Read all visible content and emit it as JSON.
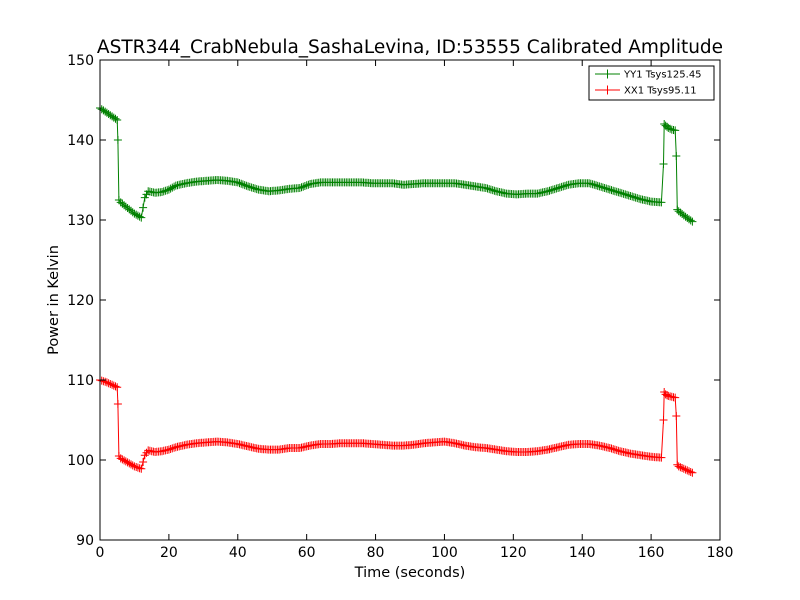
{
  "chart_data": {
    "type": "line",
    "title": "ASTR344_CrabNebula_SashaLevina, ID:53555 Calibrated Amplitude",
    "xlabel": "Time (seconds)",
    "ylabel": "Power in Kelvin",
    "xlim": [
      0,
      180
    ],
    "ylim": [
      90,
      150
    ],
    "xticks": [
      0,
      20,
      40,
      60,
      80,
      100,
      120,
      140,
      160,
      180
    ],
    "yticks": [
      90,
      100,
      110,
      120,
      130,
      140,
      150
    ],
    "grid": false,
    "legend_position": "top-right",
    "marker": "+",
    "series": [
      {
        "name": "YY1 Tsys125.45",
        "color": "#008000",
        "x": [
          0,
          2,
          4,
          5,
          5.2,
          5.5,
          6,
          8,
          10,
          12,
          13,
          14,
          16,
          18,
          20,
          22,
          25,
          28,
          31,
          34,
          37,
          40,
          43,
          46,
          49,
          52,
          55,
          58,
          61,
          64,
          67,
          70,
          73,
          76,
          79,
          82,
          85,
          88,
          91,
          94,
          97,
          100,
          103,
          106,
          109,
          112,
          115,
          118,
          121,
          124,
          127,
          130,
          133,
          136,
          139,
          142,
          145,
          148,
          151,
          154,
          157,
          160,
          163,
          163.6,
          163.8,
          164.2,
          165,
          166,
          167,
          167.3,
          167.6,
          168,
          170,
          172
        ],
        "values": [
          144,
          143.4,
          142.8,
          142.5,
          140,
          132.5,
          132.2,
          131.5,
          130.8,
          130.3,
          132.8,
          133.6,
          133.4,
          133.5,
          133.8,
          134.3,
          134.6,
          134.8,
          134.9,
          135.0,
          134.9,
          134.7,
          134.2,
          133.8,
          133.6,
          133.7,
          133.9,
          134.0,
          134.5,
          134.7,
          134.7,
          134.7,
          134.7,
          134.7,
          134.6,
          134.6,
          134.6,
          134.4,
          134.5,
          134.6,
          134.6,
          134.6,
          134.6,
          134.4,
          134.2,
          134.0,
          133.6,
          133.3,
          133.2,
          133.3,
          133.3,
          133.6,
          134.0,
          134.4,
          134.6,
          134.6,
          134.2,
          133.8,
          133.4,
          133.0,
          132.6,
          132.3,
          132.2,
          137,
          142,
          141.8,
          141.5,
          141.3,
          141.2,
          138,
          131.3,
          131.1,
          130.4,
          129.8
        ]
      },
      {
        "name": "XX1 Tsys95.11",
        "color": "#ff0000",
        "x": [
          0,
          2,
          4,
          5,
          5.2,
          5.5,
          6,
          8,
          10,
          12,
          13,
          14,
          16,
          18,
          20,
          22,
          25,
          28,
          31,
          34,
          37,
          40,
          43,
          46,
          49,
          52,
          55,
          58,
          61,
          64,
          67,
          70,
          73,
          76,
          79,
          82,
          85,
          88,
          91,
          94,
          97,
          100,
          103,
          106,
          109,
          112,
          115,
          118,
          121,
          124,
          127,
          130,
          133,
          136,
          139,
          142,
          145,
          148,
          151,
          154,
          157,
          160,
          163,
          163.6,
          163.8,
          164.2,
          165,
          166,
          167,
          167.3,
          167.6,
          168,
          170,
          172
        ],
        "values": [
          110,
          109.7,
          109.3,
          109.1,
          107,
          100.5,
          100.2,
          99.7,
          99.2,
          98.9,
          100.6,
          101.2,
          101.0,
          101.1,
          101.3,
          101.6,
          101.9,
          102.1,
          102.2,
          102.3,
          102.2,
          102.0,
          101.7,
          101.4,
          101.3,
          101.3,
          101.5,
          101.5,
          101.8,
          102.0,
          102.0,
          102.1,
          102.1,
          102.1,
          102.0,
          101.9,
          101.8,
          101.8,
          101.9,
          102.1,
          102.2,
          102.3,
          102.1,
          101.8,
          101.6,
          101.5,
          101.3,
          101.1,
          101.0,
          101.0,
          101.1,
          101.3,
          101.6,
          101.9,
          102.0,
          102.0,
          101.8,
          101.5,
          101.1,
          100.8,
          100.6,
          100.4,
          100.3,
          105,
          108.5,
          108.2,
          108.0,
          107.9,
          107.8,
          105.5,
          99.4,
          99.2,
          98.8,
          98.4
        ]
      }
    ]
  }
}
